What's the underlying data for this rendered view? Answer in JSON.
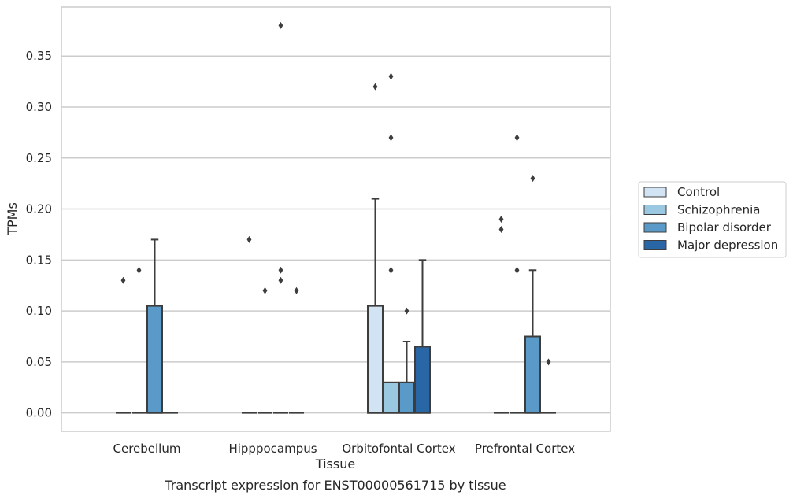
{
  "chart_data": {
    "type": "box",
    "title": "",
    "caption": "Transcript expression for ENST00000561715 by tissue",
    "xlabel": "Tissue",
    "ylabel": "TPMs",
    "ylim": [
      -0.018,
      0.398
    ],
    "yticks": [
      0.0,
      0.05,
      0.1,
      0.15,
      0.2,
      0.25,
      0.3,
      0.35
    ],
    "ytick_labels": [
      "0.00",
      "0.05",
      "0.10",
      "0.15",
      "0.20",
      "0.25",
      "0.30",
      "0.35"
    ],
    "grid": "horizontal",
    "legend_position": "right",
    "categories": [
      "Cerebellum",
      "Hipppocampus",
      "Orbitofontal Cortex",
      "Prefrontal Cortex"
    ],
    "series": [
      {
        "name": "Control",
        "color": "#d2e3f3",
        "boxes": [
          {
            "q1": 0.0,
            "median": 0.0,
            "q3": 0.0,
            "whisker_low": 0.0,
            "whisker_high": 0.0,
            "outliers": [
              0.13
            ]
          },
          {
            "q1": 0.0,
            "median": 0.0,
            "q3": 0.0,
            "whisker_low": 0.0,
            "whisker_high": 0.0,
            "outliers": [
              0.17
            ]
          },
          {
            "q1": 0.0,
            "median": 0.0,
            "q3": 0.105,
            "whisker_low": 0.0,
            "whisker_high": 0.21,
            "outliers": [
              0.32
            ]
          },
          {
            "q1": 0.0,
            "median": 0.0,
            "q3": 0.0,
            "whisker_low": 0.0,
            "whisker_high": 0.0,
            "outliers": [
              0.19,
              0.18
            ]
          }
        ]
      },
      {
        "name": "Schizophrenia",
        "color": "#9ac8e0",
        "boxes": [
          {
            "q1": 0.0,
            "median": 0.0,
            "q3": 0.0,
            "whisker_low": 0.0,
            "whisker_high": 0.0,
            "outliers": [
              0.14
            ]
          },
          {
            "q1": 0.0,
            "median": 0.0,
            "q3": 0.0,
            "whisker_low": 0.0,
            "whisker_high": 0.0,
            "outliers": [
              0.12
            ]
          },
          {
            "q1": 0.0,
            "median": 0.0,
            "q3": 0.03,
            "whisker_low": 0.0,
            "whisker_high": 0.03,
            "outliers": [
              0.33,
              0.27,
              0.14
            ]
          },
          {
            "q1": 0.0,
            "median": 0.0,
            "q3": 0.0,
            "whisker_low": 0.0,
            "whisker_high": 0.0,
            "outliers": [
              0.27,
              0.14
            ]
          }
        ]
      },
      {
        "name": "Bipolar disorder",
        "color": "#5a9ac8",
        "boxes": [
          {
            "q1": 0.0,
            "median": 0.0,
            "q3": 0.105,
            "whisker_low": 0.0,
            "whisker_high": 0.17,
            "outliers": []
          },
          {
            "q1": 0.0,
            "median": 0.0,
            "q3": 0.0,
            "whisker_low": 0.0,
            "whisker_high": 0.0,
            "outliers": [
              0.38,
              0.14,
              0.13
            ]
          },
          {
            "q1": 0.0,
            "median": 0.0,
            "q3": 0.03,
            "whisker_low": 0.0,
            "whisker_high": 0.07,
            "outliers": [
              0.1
            ]
          },
          {
            "q1": 0.0,
            "median": 0.0,
            "q3": 0.075,
            "whisker_low": 0.0,
            "whisker_high": 0.14,
            "outliers": [
              0.23
            ]
          }
        ]
      },
      {
        "name": "Major depression",
        "color": "#2866a6",
        "boxes": [
          {
            "q1": 0.0,
            "median": 0.0,
            "q3": 0.0,
            "whisker_low": 0.0,
            "whisker_high": 0.0,
            "outliers": []
          },
          {
            "q1": 0.0,
            "median": 0.0,
            "q3": 0.0,
            "whisker_low": 0.0,
            "whisker_high": 0.0,
            "outliers": [
              0.12
            ]
          },
          {
            "q1": 0.0,
            "median": 0.0,
            "q3": 0.065,
            "whisker_low": 0.0,
            "whisker_high": 0.15,
            "outliers": []
          },
          {
            "q1": 0.0,
            "median": 0.0,
            "q3": 0.0,
            "whisker_low": 0.0,
            "whisker_high": 0.0,
            "outliers": [
              0.05
            ]
          }
        ]
      }
    ]
  }
}
